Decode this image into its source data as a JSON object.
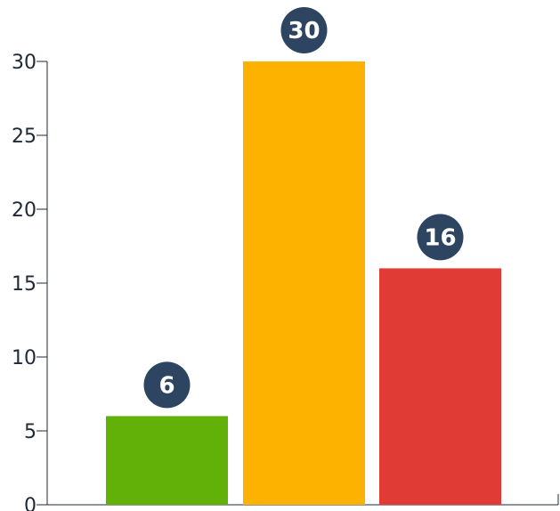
{
  "chart_data": {
    "type": "bar",
    "categories": [
      "",
      "",
      ""
    ],
    "values": [
      6,
      30,
      16
    ],
    "colors": [
      "#62b109",
      "#fdb200",
      "#e03c35"
    ],
    "data_labels": [
      "6",
      "30",
      "16"
    ],
    "label_badge_color": "#2d4560",
    "title": "",
    "xlabel": "",
    "ylabel": "",
    "ylim": [
      0,
      30
    ],
    "yticks": [
      0,
      5,
      10,
      15,
      20,
      25,
      30
    ],
    "ytick_labels": [
      "0",
      "5",
      "10",
      "15",
      "20",
      "25",
      "30"
    ],
    "grid": false,
    "legend": false
  }
}
